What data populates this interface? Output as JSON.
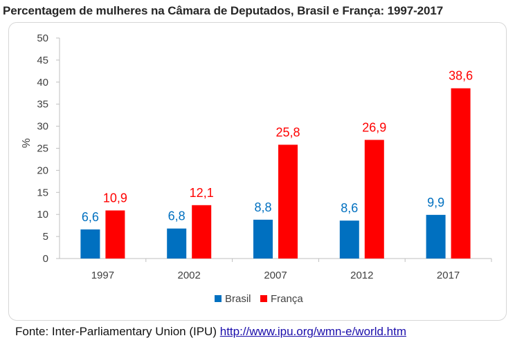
{
  "chart_data": {
    "type": "bar",
    "title": "Percentagem de mulheres na Câmara de Deputados, Brasil e França: 1997-2017",
    "ylabel": "%",
    "ylim": [
      0,
      50
    ],
    "yticks": [
      "0",
      "5",
      "10",
      "15",
      "20",
      "25",
      "30",
      "35",
      "40",
      "45",
      "50"
    ],
    "categories": [
      "1997",
      "2002",
      "2007",
      "2012",
      "2017"
    ],
    "series": [
      {
        "name": "Brasil",
        "color": "#0070c0",
        "values": [
          6.6,
          6.8,
          8.8,
          8.6,
          9.9
        ],
        "labels": [
          "6,6",
          "6,8",
          "8,8",
          "8,6",
          "9,9"
        ]
      },
      {
        "name": "França",
        "color": "#ff0000",
        "values": [
          10.9,
          12.1,
          25.8,
          26.9,
          38.6
        ],
        "labels": [
          "10,9",
          "12,1",
          "25,8",
          "26,9",
          "38,6"
        ]
      }
    ],
    "legend": "bottom",
    "grid": false
  },
  "footer": {
    "source_text": "Fonte: Inter-Parliamentary Union (IPU)",
    "link_text": "http://www.ipu.org/wmn-e/world.htm"
  }
}
